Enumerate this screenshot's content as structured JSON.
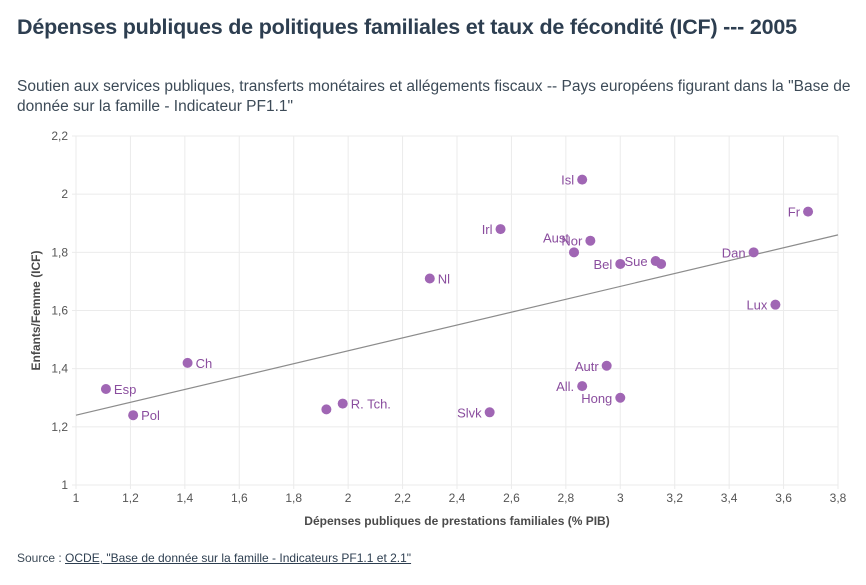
{
  "header": {
    "title": "Dépenses publiques de politiques familiales et taux de fécondité (ICF) --- 2005",
    "subtitle": "Soutien aux services publiques, transferts monétaires et allégements fiscaux -- Pays européens figurant dans la \"Base de donnée sur la famille - Indicateur PF1.1\""
  },
  "footer": {
    "source_prefix": "Source : ",
    "source_link": "OCDE, \"Base de donnée sur la famille - Indicateurs PF1.1 et 2.1\""
  },
  "colors": {
    "point": "#a066b4",
    "label": "#8a4d9e",
    "trendline": "#8c8c8c",
    "grid": "#ebebeb"
  },
  "chart_data": {
    "type": "scatter",
    "title": "Dépenses publiques de politiques familiales et taux de fécondité (ICF) --- 2005",
    "xlabel": "Dépenses publiques de prestations familiales (% PIB)",
    "ylabel": "Enfants/Femme (ICF)",
    "xlim": [
      1,
      3.8
    ],
    "ylim": [
      1,
      2.2
    ],
    "xticks": [
      "1",
      "1,2",
      "1,4",
      "1,6",
      "1,8",
      "2",
      "2,2",
      "2,4",
      "2,6",
      "2,8",
      "3",
      "3,2",
      "3,4",
      "3,6",
      "3,8"
    ],
    "yticks": [
      "1",
      "1,2",
      "1,4",
      "1,6",
      "1,8",
      "2",
      "2,2"
    ],
    "grid": true,
    "legend": "none",
    "points": [
      {
        "label": "Esp",
        "x": 1.11,
        "y": 1.33,
        "pos": "right"
      },
      {
        "label": "Pol",
        "x": 1.21,
        "y": 1.24,
        "pos": "right"
      },
      {
        "label": "Ch",
        "x": 1.41,
        "y": 1.42,
        "pos": "right"
      },
      {
        "label": "",
        "x": 1.92,
        "y": 1.26,
        "pos": "right"
      },
      {
        "label": "R. Tch.",
        "x": 1.98,
        "y": 1.28,
        "pos": "right"
      },
      {
        "label": "Slvk",
        "x": 2.52,
        "y": 1.25,
        "pos": "left"
      },
      {
        "label": "Nl",
        "x": 2.3,
        "y": 1.71,
        "pos": "right"
      },
      {
        "label": "Irl",
        "x": 2.56,
        "y": 1.88,
        "pos": "left"
      },
      {
        "label": "Isl",
        "x": 2.86,
        "y": 2.05,
        "pos": "left"
      },
      {
        "label": "Aust",
        "x": 2.83,
        "y": 1.8,
        "pos": "above-left"
      },
      {
        "label": "Nor",
        "x": 2.89,
        "y": 1.84,
        "pos": "left"
      },
      {
        "label": "Bel",
        "x": 3.0,
        "y": 1.76,
        "pos": "left"
      },
      {
        "label": "Sue",
        "x": 3.13,
        "y": 1.77,
        "pos": "left"
      },
      {
        "label": "",
        "x": 3.15,
        "y": 1.76,
        "pos": "right"
      },
      {
        "label": "Dan",
        "x": 3.49,
        "y": 1.8,
        "pos": "left"
      },
      {
        "label": "Fr",
        "x": 3.69,
        "y": 1.94,
        "pos": "left"
      },
      {
        "label": "Lux",
        "x": 3.57,
        "y": 1.62,
        "pos": "left"
      },
      {
        "label": "Autr",
        "x": 2.95,
        "y": 1.41,
        "pos": "left"
      },
      {
        "label": "All.",
        "x": 2.86,
        "y": 1.34,
        "pos": "left"
      },
      {
        "label": "Hong",
        "x": 3.0,
        "y": 1.3,
        "pos": "left"
      }
    ],
    "trendline": {
      "x": [
        1,
        3.8
      ],
      "y": [
        1.24,
        1.86
      ]
    }
  }
}
